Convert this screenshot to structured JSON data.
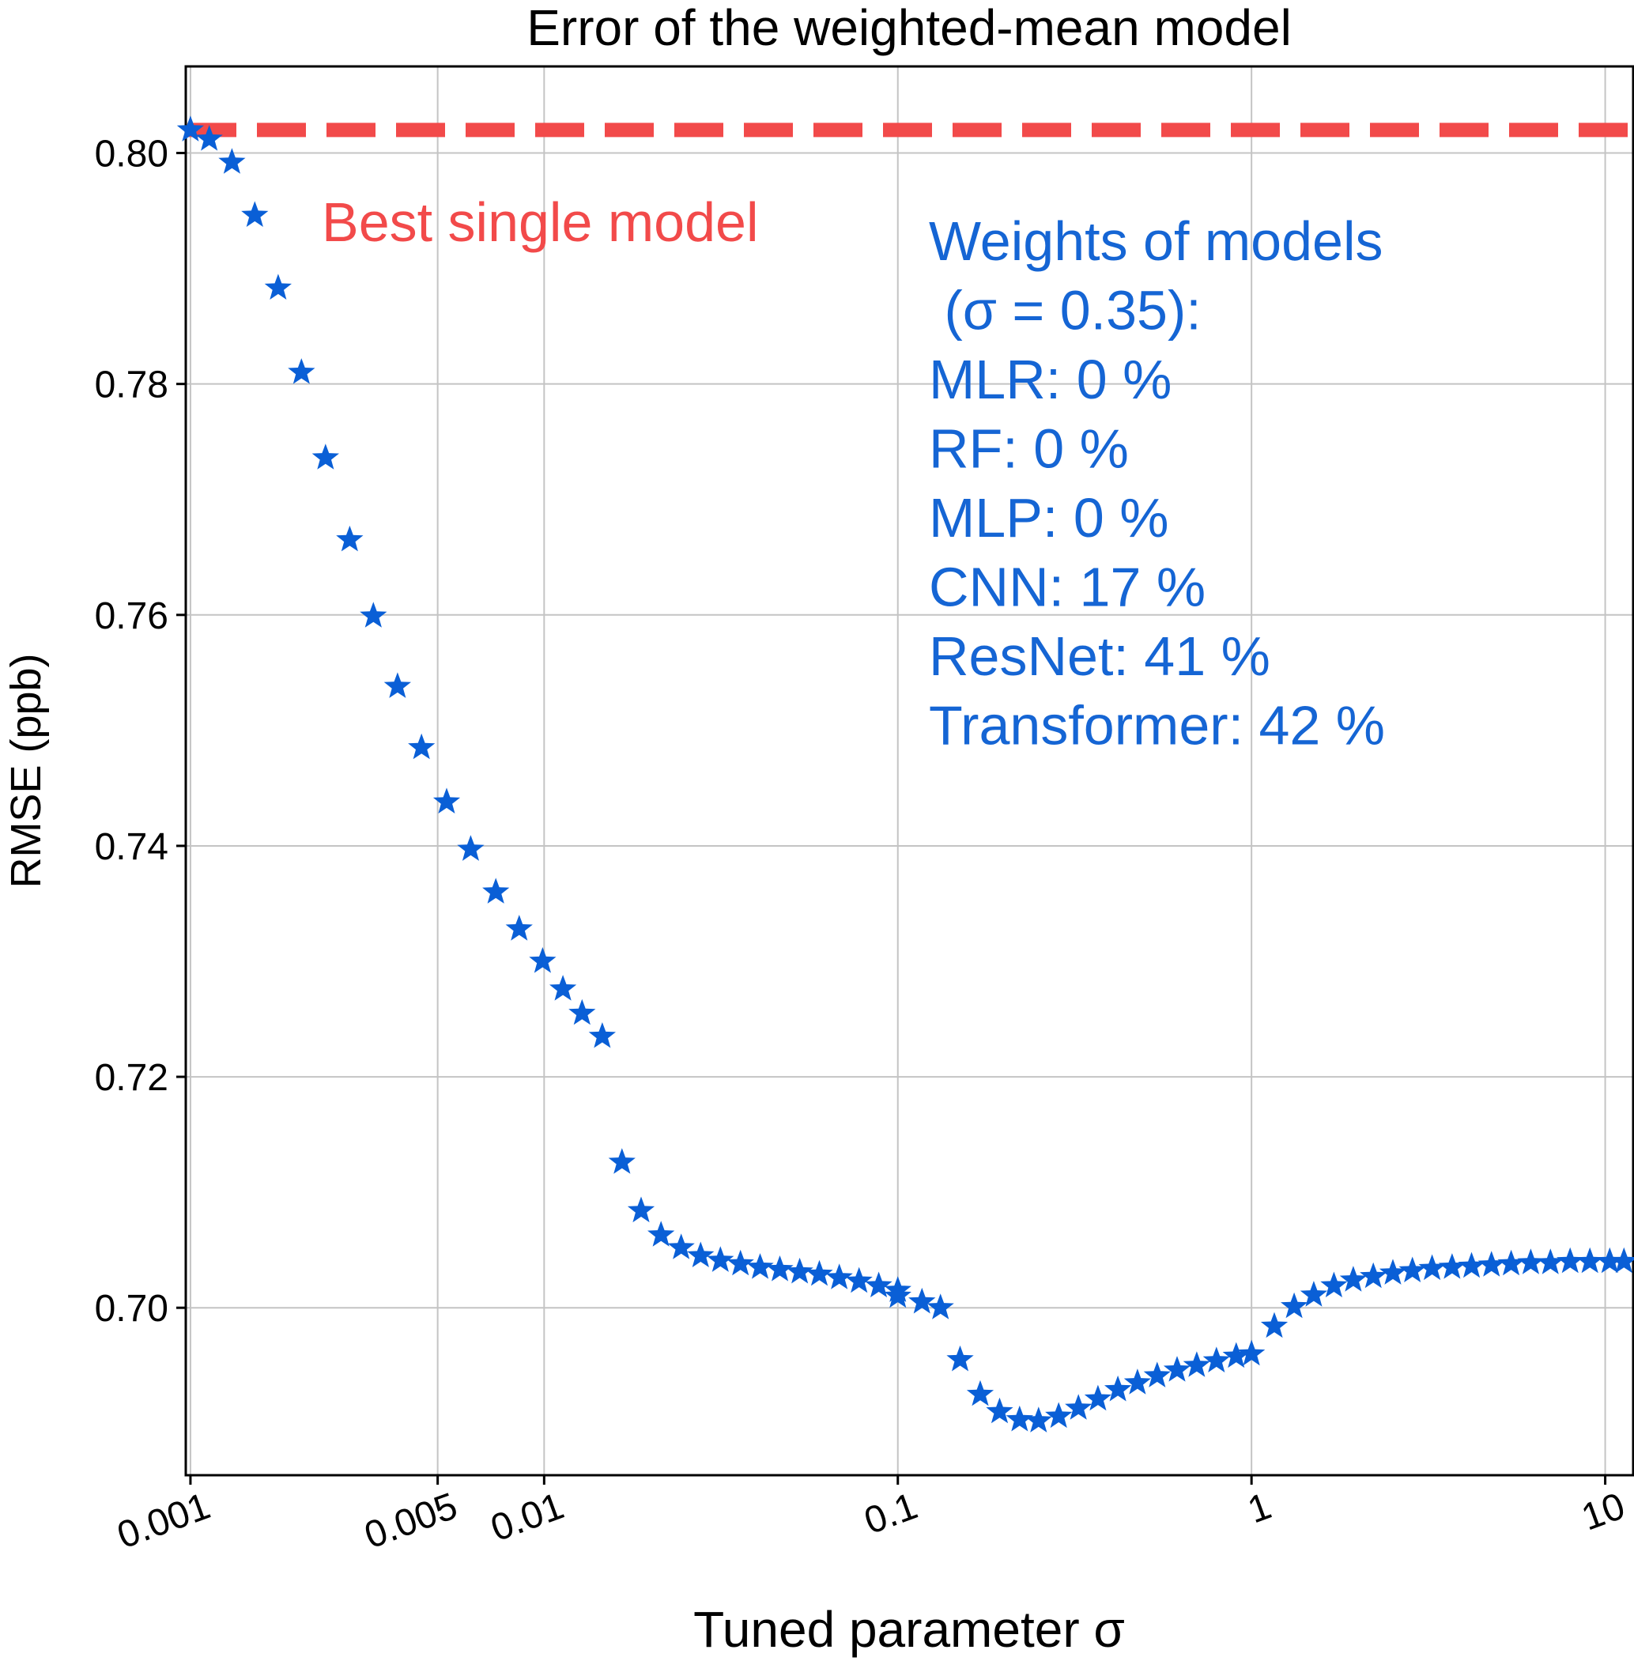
{
  "chart_data": {
    "type": "scatter",
    "title": "Error of the weighted-mean model",
    "xlabel": "Tuned parameter σ",
    "ylabel": "RMSE (ppb)",
    "xscale": "log",
    "xlim": [
      0.00097,
      12
    ],
    "ylim": [
      0.6855,
      0.8075
    ],
    "x_ticks": [
      {
        "value": 0.001,
        "label": "0.001"
      },
      {
        "value": 0.005,
        "label": "0.005"
      },
      {
        "value": 0.01,
        "label": "0.01"
      },
      {
        "value": 0.1,
        "label": "0.1"
      },
      {
        "value": 1,
        "label": "1"
      },
      {
        "value": 10,
        "label": "10"
      }
    ],
    "y_ticks": [
      {
        "value": 0.7,
        "label": "0.70"
      },
      {
        "value": 0.72,
        "label": "0.72"
      },
      {
        "value": 0.74,
        "label": "0.74"
      },
      {
        "value": 0.76,
        "label": "0.76"
      },
      {
        "value": 0.78,
        "label": "0.78"
      },
      {
        "value": 0.8,
        "label": "0.80"
      }
    ],
    "grid": true,
    "series": [
      {
        "marker": "star",
        "color": "#0a5fd6",
        "x": [
          0.001,
          0.00113,
          0.00131,
          0.00152,
          0.00177,
          0.00206,
          0.00241,
          0.00282,
          0.00329,
          0.00385,
          0.0045,
          0.0053,
          0.0062,
          0.0073,
          0.0085,
          0.0099,
          0.0113,
          0.0128,
          0.0146,
          0.0166,
          0.0188,
          0.0214,
          0.0244,
          0.0277,
          0.0315,
          0.0359,
          0.0408,
          0.0464,
          0.0528,
          0.06,
          0.0683,
          0.0777,
          0.0883,
          0.1,
          0.1,
          0.117,
          0.132,
          0.15,
          0.171,
          0.194,
          0.221,
          0.25,
          0.285,
          0.324,
          0.368,
          0.419,
          0.476,
          0.541,
          0.616,
          0.7,
          0.796,
          0.905,
          1.0,
          1.16,
          1.32,
          1.5,
          1.71,
          1.94,
          2.21,
          2.51,
          2.85,
          3.24,
          3.69,
          4.19,
          4.77,
          5.42,
          6.16,
          7.0,
          7.96,
          9.05,
          10.3,
          11.3
        ],
        "y": [
          0.802,
          0.8012,
          0.7992,
          0.7946,
          0.7883,
          0.781,
          0.7736,
          0.7665,
          0.7599,
          0.7538,
          0.7485,
          0.7438,
          0.7397,
          0.736,
          0.7328,
          0.73,
          0.7276,
          0.7255,
          0.7235,
          0.7126,
          0.7084,
          0.7063,
          0.7052,
          0.7045,
          0.7041,
          0.7038,
          0.7035,
          0.7033,
          0.7031,
          0.7029,
          0.7026,
          0.7023,
          0.7019,
          0.7015,
          0.701,
          0.7005,
          0.7,
          0.6955,
          0.6925,
          0.691,
          0.6903,
          0.6902,
          0.6906,
          0.6913,
          0.6921,
          0.6929,
          0.6935,
          0.6941,
          0.6946,
          0.695,
          0.6954,
          0.6958,
          0.696,
          0.6984,
          0.7001,
          0.7011,
          0.7019,
          0.7024,
          0.7027,
          0.703,
          0.7032,
          0.7034,
          0.7035,
          0.7036,
          0.7037,
          0.7038,
          0.7039,
          0.7039,
          0.704,
          0.704,
          0.704,
          0.704
        ]
      }
    ],
    "reference_line": {
      "y": 0.802,
      "style": "dashed",
      "color": "#f24a4a"
    },
    "annotations": {
      "reference_label": "Best single model",
      "weights_lines": [
        "Weights of models",
        " (σ = 0.35):",
        "MLR: 0 %",
        "RF: 0 %",
        "MLP: 0 %",
        "CNN: 17 %",
        "ResNet: 41 %",
        "Transformer: 42 %"
      ]
    },
    "colors": {
      "points": "#0a5fd6",
      "reference": "#f24a4a",
      "weights_text": "#1565d4",
      "grid": "#c4c4c4",
      "axes": "#000000"
    }
  }
}
